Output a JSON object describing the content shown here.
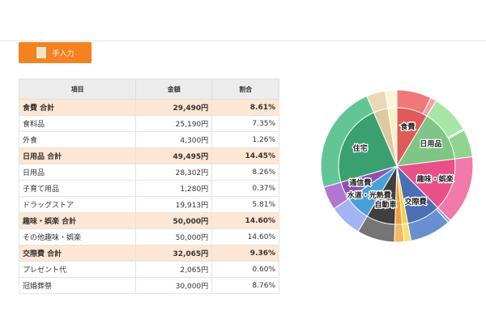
{
  "button": {
    "label": "手入力"
  },
  "table": {
    "headers": [
      "項目",
      "金額",
      "割合"
    ],
    "rows": [
      {
        "cells": [
          "食費 合計",
          "29,490円",
          "8.61%"
        ],
        "subtotal": true
      },
      {
        "cells": [
          "食料品",
          "25,190円",
          "7.35%"
        ],
        "subtotal": false
      },
      {
        "cells": [
          "外食",
          "4,300円",
          "1.26%"
        ],
        "subtotal": false
      },
      {
        "cells": [
          "日用品 合計",
          "49,495円",
          "14.45%"
        ],
        "subtotal": true
      },
      {
        "cells": [
          "日用品",
          "28,302円",
          "8.26%"
        ],
        "subtotal": false
      },
      {
        "cells": [
          "子育て用品",
          "1,280円",
          "0.37%"
        ],
        "subtotal": false
      },
      {
        "cells": [
          "ドラッグストア",
          "19,913円",
          "5.81%"
        ],
        "subtotal": false
      },
      {
        "cells": [
          "趣味・娯楽 合計",
          "50,000円",
          "14.60%"
        ],
        "subtotal": true
      },
      {
        "cells": [
          "その他趣味・娯楽",
          "50,000円",
          "14.60%"
        ],
        "subtotal": false
      },
      {
        "cells": [
          "交際費 合計",
          "32,065円",
          "9.36%"
        ],
        "subtotal": true
      },
      {
        "cells": [
          "プレゼント代",
          "2,065円",
          "0.60%"
        ],
        "subtotal": false
      },
      {
        "cells": [
          "冠婚葬祭",
          "30,000円",
          "8.76%"
        ],
        "subtotal": false
      }
    ]
  },
  "chart_data": {
    "type": "pie",
    "categories": [
      "食費",
      "日用品",
      "趣味・娯楽",
      "交際費",
      null,
      null,
      "自動車",
      "水道・光熱費",
      "通信費",
      "住宅",
      null,
      null
    ],
    "values": [
      8.61,
      14.45,
      14.6,
      9.36,
      1.5,
      2,
      8,
      7,
      5,
      23,
      4,
      2.48
    ],
    "colors": [
      "#e05a5a",
      "#7fc585",
      "#e8508a",
      "#4a6fb5",
      "#f5d040",
      "#f0a040",
      "#3f3f3f",
      "#4aa0d8",
      "#9050b0",
      "#3aa070",
      "#e0c8a0",
      "#f7f1c8"
    ],
    "outer_ring": {
      "values": [
        7.35,
        1.26,
        8.26,
        0.37,
        5.81,
        14.6,
        0.6,
        8.76,
        1.5,
        2,
        8,
        7,
        5,
        23,
        4,
        2.48
      ],
      "colors": [
        "#f07878",
        "#f4a0a0",
        "#a8e6a8",
        "#c8f0c8",
        "#8fd48f",
        "#f27aaa",
        "#88a8e0",
        "#6a8fd0",
        "#f8e070",
        "#f5b860",
        "#757575",
        "#a3b4f2",
        "#b276d2",
        "#62c595",
        "#ead8b8",
        "#fbf6da"
      ]
    }
  }
}
